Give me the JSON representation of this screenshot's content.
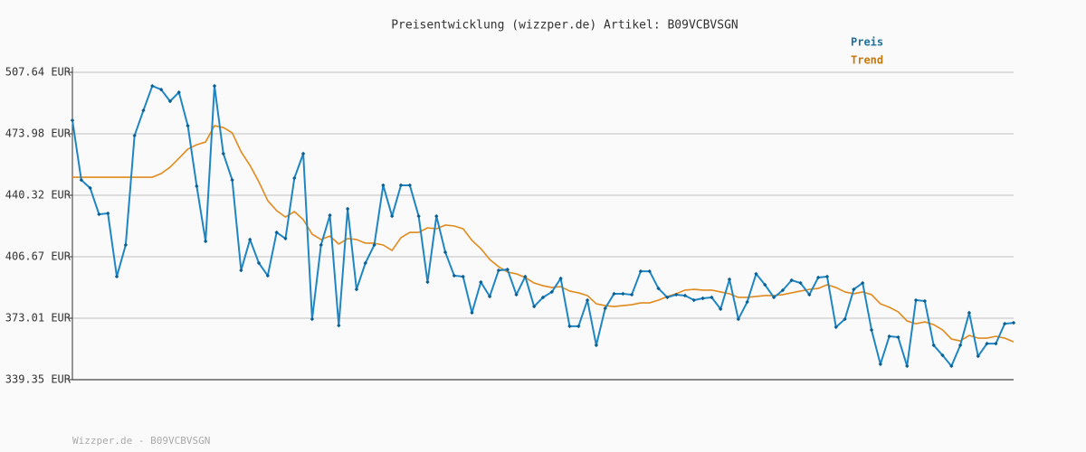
{
  "chart_data": {
    "type": "line",
    "title": "Preisentwicklung (wizzper.de) Artikel: B09VCBVSGN",
    "footer": "Wizzper.de - B09VCBVSGN",
    "categories": [
      null,
      null,
      null,
      null,
      null,
      null,
      null,
      null,
      null,
      null,
      null,
      null,
      null,
      null,
      null,
      null,
      null,
      null,
      null,
      null,
      null,
      null,
      null,
      null,
      null,
      null,
      null,
      null,
      null,
      null,
      null,
      null,
      null,
      null,
      null,
      null,
      null,
      null,
      null,
      null,
      null,
      null,
      null,
      null,
      null,
      null,
      null,
      null,
      null,
      null,
      null,
      null,
      null,
      null,
      null,
      null,
      null,
      null,
      null,
      null,
      null,
      null,
      null,
      null,
      null,
      null,
      null,
      null,
      null,
      null,
      null,
      null,
      null,
      null,
      null,
      null,
      null,
      null,
      null,
      null,
      null,
      null,
      null,
      null,
      null,
      null,
      null,
      null,
      null,
      null,
      null,
      null,
      null,
      null,
      null,
      null,
      null,
      null,
      null,
      null,
      null,
      null,
      null,
      null,
      null,
      null,
      null
    ],
    "series": [
      {
        "name": "Preis",
        "color": "#1f86c3",
        "markers": true,
        "values": [
          481.4,
          448.7,
          444.3,
          429.9,
          430.4,
          395.8,
          413.1,
          473.0,
          486.8,
          500.2,
          498.2,
          491.8,
          496.7,
          478.4,
          445.3,
          415.1,
          500.2,
          463.1,
          448.7,
          399.2,
          416.1,
          403.2,
          396.3,
          420.0,
          416.6,
          449.7,
          463.1,
          372.5,
          413.1,
          429.4,
          369.0,
          432.9,
          388.8,
          403.2,
          413.1,
          445.8,
          428.9,
          445.8,
          445.8,
          428.9,
          392.8,
          428.9,
          409.1,
          396.3,
          395.8,
          376.0,
          392.8,
          384.9,
          399.2,
          399.7,
          385.9,
          395.8,
          379.4,
          384.4,
          387.4,
          394.8,
          368.6,
          368.6,
          382.9,
          358.2,
          378.4,
          386.4,
          386.4,
          385.9,
          398.7,
          398.7,
          389.3,
          384.4,
          385.9,
          385.4,
          382.9,
          383.9,
          384.4,
          378.0,
          394.3,
          372.5,
          381.9,
          397.3,
          391.3,
          384.4,
          388.3,
          393.8,
          392.3,
          385.9,
          395.3,
          395.8,
          368.1,
          372.5,
          388.8,
          392.3,
          366.6,
          347.8,
          363.1,
          362.6,
          346.8,
          382.9,
          382.4,
          358.2,
          352.7,
          346.8,
          358.2,
          376.0,
          352.2,
          359.1,
          359.1,
          370.0,
          370.5
        ]
      },
      {
        "name": "Trend",
        "color": "#e08a1e",
        "markers": false,
        "values": [
          450.2,
          450.2,
          450.2,
          450.2,
          450.2,
          450.2,
          450.2,
          450.2,
          450.2,
          450.2,
          452.2,
          455.7,
          460.6,
          465.6,
          468.0,
          469.5,
          478.4,
          477.4,
          474.5,
          464.1,
          456.7,
          447.7,
          437.4,
          431.9,
          428.4,
          431.4,
          427.0,
          419.0,
          416.1,
          418.0,
          413.6,
          416.6,
          416.1,
          414.1,
          414.1,
          413.1,
          410.1,
          417.1,
          420.0,
          420.0,
          422.5,
          422.0,
          424.0,
          423.5,
          422.0,
          415.6,
          411.1,
          405.2,
          401.2,
          398.3,
          397.3,
          395.3,
          392.3,
          390.8,
          389.8,
          390.3,
          387.9,
          386.9,
          385.4,
          380.9,
          379.9,
          379.4,
          379.9,
          380.4,
          381.4,
          381.4,
          382.9,
          384.9,
          386.4,
          388.4,
          388.8,
          388.4,
          388.4,
          387.4,
          386.4,
          384.4,
          384.4,
          384.9,
          385.4,
          385.4,
          385.9,
          386.9,
          387.9,
          388.8,
          389.3,
          391.3,
          389.8,
          387.4,
          386.4,
          387.4,
          385.9,
          380.9,
          379.0,
          376.5,
          371.5,
          370.0,
          371.0,
          369.5,
          366.6,
          361.6,
          360.6,
          363.6,
          362.1,
          362.1,
          363.1,
          362.1,
          360.1
        ]
      }
    ],
    "ylim": [
      339.35,
      507.64
    ],
    "yticks": [
      {
        "value": 339.35,
        "label": "339.35 EUR"
      },
      {
        "value": 373.01,
        "label": "373.01 EUR"
      },
      {
        "value": 406.67,
        "label": "406.67 EUR"
      },
      {
        "value": 440.32,
        "label": "440.32 EUR"
      },
      {
        "value": 473.98,
        "label": "473.98 EUR"
      },
      {
        "value": 507.64,
        "label": "507.64 EUR"
      }
    ],
    "grid": true,
    "legend": "top-right"
  }
}
